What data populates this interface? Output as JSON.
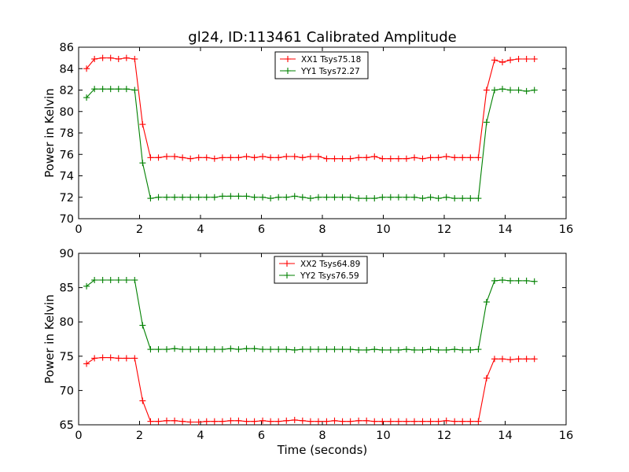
{
  "chart_data": [
    {
      "type": "line",
      "title": "gl24, ID:113461 Calibrated Amplitude",
      "xlabel": "",
      "ylabel": "Power in Kelvin",
      "xlim": [
        0,
        16
      ],
      "ylim": [
        70,
        86
      ],
      "xticks": [
        0,
        2,
        4,
        6,
        8,
        10,
        12,
        14,
        16
      ],
      "yticks": [
        70,
        72,
        74,
        76,
        78,
        80,
        82,
        84,
        86
      ],
      "grid": false,
      "legend": "top-center",
      "x": [
        0.26,
        0.52,
        0.79,
        1.05,
        1.31,
        1.57,
        1.84,
        2.1,
        2.36,
        2.62,
        2.89,
        3.15,
        3.41,
        3.67,
        3.94,
        4.2,
        4.46,
        4.72,
        4.99,
        5.25,
        5.51,
        5.77,
        6.04,
        6.3,
        6.56,
        6.82,
        7.09,
        7.35,
        7.61,
        7.87,
        8.14,
        8.4,
        8.66,
        8.92,
        9.19,
        9.45,
        9.71,
        9.97,
        10.24,
        10.5,
        10.76,
        11.02,
        11.29,
        11.55,
        11.81,
        12.07,
        12.34,
        12.6,
        12.86,
        13.12,
        13.39,
        13.65,
        13.91,
        14.17,
        14.44,
        14.7,
        14.96
      ],
      "series": [
        {
          "name": "XX1 Tsys75.18",
          "color": "#ff0000",
          "values": [
            84.0,
            84.9,
            85.0,
            85.0,
            84.9,
            85.0,
            84.9,
            78.8,
            75.7,
            75.7,
            75.8,
            75.8,
            75.7,
            75.6,
            75.7,
            75.7,
            75.6,
            75.7,
            75.7,
            75.7,
            75.8,
            75.7,
            75.8,
            75.7,
            75.7,
            75.8,
            75.8,
            75.7,
            75.8,
            75.8,
            75.6,
            75.6,
            75.6,
            75.6,
            75.7,
            75.7,
            75.8,
            75.6,
            75.6,
            75.6,
            75.6,
            75.7,
            75.6,
            75.7,
            75.7,
            75.8,
            75.7,
            75.7,
            75.7,
            75.7,
            82.0,
            84.8,
            84.6,
            84.8,
            84.9,
            84.9,
            84.9
          ]
        },
        {
          "name": "YY1 Tsys72.27",
          "color": "#008000",
          "values": [
            81.3,
            82.1,
            82.1,
            82.1,
            82.1,
            82.1,
            82.0,
            75.2,
            71.9,
            72.0,
            72.0,
            72.0,
            72.0,
            72.0,
            72.0,
            72.0,
            72.0,
            72.1,
            72.1,
            72.1,
            72.1,
            72.0,
            72.0,
            71.9,
            72.0,
            72.0,
            72.1,
            72.0,
            71.9,
            72.0,
            72.0,
            72.0,
            72.0,
            72.0,
            71.9,
            71.9,
            71.9,
            72.0,
            72.0,
            72.0,
            72.0,
            72.0,
            71.9,
            72.0,
            71.9,
            72.0,
            71.9,
            71.9,
            71.9,
            71.9,
            79.0,
            82.0,
            82.1,
            82.0,
            82.0,
            81.9,
            82.0
          ]
        }
      ]
    },
    {
      "type": "line",
      "title": "",
      "xlabel": "Time (seconds)",
      "ylabel": "Power in Kelvin",
      "xlim": [
        0,
        16
      ],
      "ylim": [
        65,
        90
      ],
      "xticks": [
        0,
        2,
        4,
        6,
        8,
        10,
        12,
        14,
        16
      ],
      "yticks": [
        65,
        70,
        75,
        80,
        85,
        90
      ],
      "grid": false,
      "legend": "top-center",
      "x": [
        0.26,
        0.52,
        0.79,
        1.05,
        1.31,
        1.57,
        1.84,
        2.1,
        2.36,
        2.62,
        2.89,
        3.15,
        3.41,
        3.67,
        3.94,
        4.2,
        4.46,
        4.72,
        4.99,
        5.25,
        5.51,
        5.77,
        6.04,
        6.3,
        6.56,
        6.82,
        7.09,
        7.35,
        7.61,
        7.87,
        8.14,
        8.4,
        8.66,
        8.92,
        9.19,
        9.45,
        9.71,
        9.97,
        10.24,
        10.5,
        10.76,
        11.02,
        11.29,
        11.55,
        11.81,
        12.07,
        12.34,
        12.6,
        12.86,
        13.12,
        13.39,
        13.65,
        13.91,
        14.17,
        14.44,
        14.7,
        14.96
      ],
      "series": [
        {
          "name": "XX2 Tsys64.89",
          "color": "#ff0000",
          "values": [
            73.9,
            74.7,
            74.8,
            74.8,
            74.7,
            74.7,
            74.7,
            68.5,
            65.5,
            65.5,
            65.6,
            65.6,
            65.5,
            65.4,
            65.4,
            65.5,
            65.5,
            65.5,
            65.6,
            65.6,
            65.5,
            65.5,
            65.6,
            65.5,
            65.5,
            65.6,
            65.7,
            65.6,
            65.5,
            65.5,
            65.5,
            65.6,
            65.5,
            65.5,
            65.6,
            65.6,
            65.5,
            65.5,
            65.5,
            65.5,
            65.5,
            65.5,
            65.5,
            65.5,
            65.5,
            65.6,
            65.5,
            65.5,
            65.5,
            65.5,
            71.8,
            74.6,
            74.6,
            74.5,
            74.6,
            74.6,
            74.6
          ]
        },
        {
          "name": "YY2 Tsys76.59",
          "color": "#008000",
          "values": [
            85.2,
            86.1,
            86.1,
            86.1,
            86.1,
            86.1,
            86.1,
            79.5,
            76.0,
            76.0,
            76.0,
            76.1,
            76.0,
            76.0,
            76.0,
            76.0,
            76.0,
            76.0,
            76.1,
            76.0,
            76.1,
            76.1,
            76.0,
            76.0,
            76.0,
            76.0,
            75.9,
            76.0,
            76.0,
            76.0,
            76.0,
            76.0,
            76.0,
            76.0,
            75.9,
            75.9,
            76.0,
            75.9,
            75.9,
            75.9,
            76.0,
            75.9,
            75.9,
            76.0,
            75.9,
            75.9,
            76.0,
            75.9,
            75.9,
            76.0,
            82.9,
            86.0,
            86.1,
            86.0,
            86.0,
            86.0,
            85.9
          ]
        }
      ]
    }
  ]
}
